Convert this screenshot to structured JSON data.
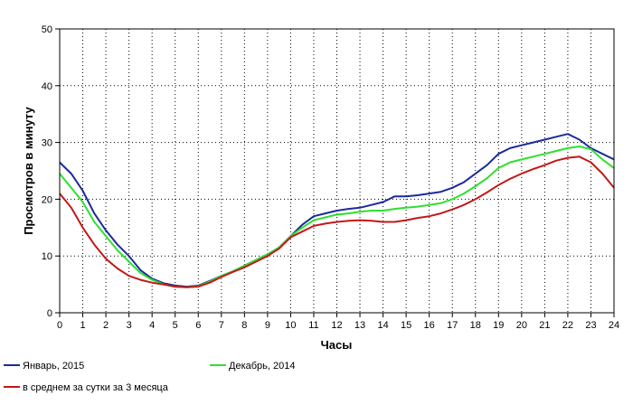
{
  "chart_data": {
    "type": "line",
    "title": "",
    "xlabel": "Часы",
    "ylabel": "Просмотров в минуту",
    "xlim": [
      0,
      24
    ],
    "ylim": [
      0,
      50
    ],
    "xticks": [
      0,
      1,
      2,
      3,
      4,
      5,
      6,
      7,
      8,
      9,
      10,
      11,
      12,
      13,
      14,
      15,
      16,
      17,
      18,
      19,
      20,
      21,
      22,
      23,
      24
    ],
    "yticks": [
      0,
      10,
      20,
      30,
      40,
      50
    ],
    "grid": true,
    "legend_position": "bottom",
    "x": [
      0,
      0.5,
      1,
      1.5,
      2,
      2.5,
      3,
      3.5,
      4,
      4.5,
      5,
      5.5,
      6,
      6.5,
      7,
      7.5,
      8,
      8.5,
      9,
      9.5,
      10,
      10.5,
      11,
      11.5,
      12,
      12.5,
      13,
      13.5,
      14,
      14.5,
      15,
      15.5,
      16,
      16.5,
      17,
      17.5,
      18,
      18.5,
      19,
      19.5,
      20,
      20.5,
      21,
      21.5,
      22,
      22.5,
      23,
      23.5,
      24
    ],
    "series": [
      {
        "name": "Январь, 2015",
        "color": "#1c2a9c",
        "values": [
          26.5,
          24.5,
          21.5,
          17.5,
          14.5,
          12,
          10,
          7.5,
          6,
          5.2,
          4.8,
          4.6,
          4.8,
          5.6,
          6.5,
          7.3,
          8.3,
          9.3,
          10.3,
          11.5,
          13.5,
          15.5,
          17,
          17.5,
          18,
          18.3,
          18.5,
          19,
          19.5,
          20.5,
          20.5,
          20.7,
          21,
          21.3,
          22,
          23,
          24.5,
          26,
          28,
          29,
          29.5,
          30,
          30.5,
          31,
          31.5,
          30.5,
          29,
          28,
          27
        ]
      },
      {
        "name": "Декабрь, 2014",
        "color": "#2ee02e",
        "values": [
          24.5,
          22,
          19.5,
          16,
          13.5,
          11,
          9,
          7,
          5.8,
          5,
          4.6,
          4.5,
          4.7,
          5.5,
          6.5,
          7.3,
          8.3,
          9.3,
          10.3,
          11.5,
          13.5,
          15,
          16.3,
          16.8,
          17.3,
          17.5,
          17.8,
          18,
          18,
          18.3,
          18.5,
          18.7,
          19,
          19.3,
          20,
          21,
          22.3,
          23.7,
          25.5,
          26.5,
          27,
          27.5,
          28,
          28.5,
          29,
          29.3,
          28.8,
          27,
          25.5
        ]
      },
      {
        "name": "в среднем за сутки за 3 месяца",
        "color": "#c41818",
        "values": [
          21,
          18.5,
          15,
          12,
          9.5,
          7.8,
          6.5,
          5.8,
          5.3,
          5,
          4.6,
          4.5,
          4.6,
          5.3,
          6.3,
          7.2,
          8,
          9,
          10,
          11.3,
          13.3,
          14.3,
          15.3,
          15.7,
          16,
          16.2,
          16.3,
          16.2,
          16,
          16,
          16.3,
          16.7,
          17,
          17.5,
          18.2,
          19,
          20,
          21.2,
          22.5,
          23.6,
          24.5,
          25.3,
          26,
          26.8,
          27.3,
          27.5,
          26.5,
          24.5,
          22
        ]
      }
    ]
  }
}
